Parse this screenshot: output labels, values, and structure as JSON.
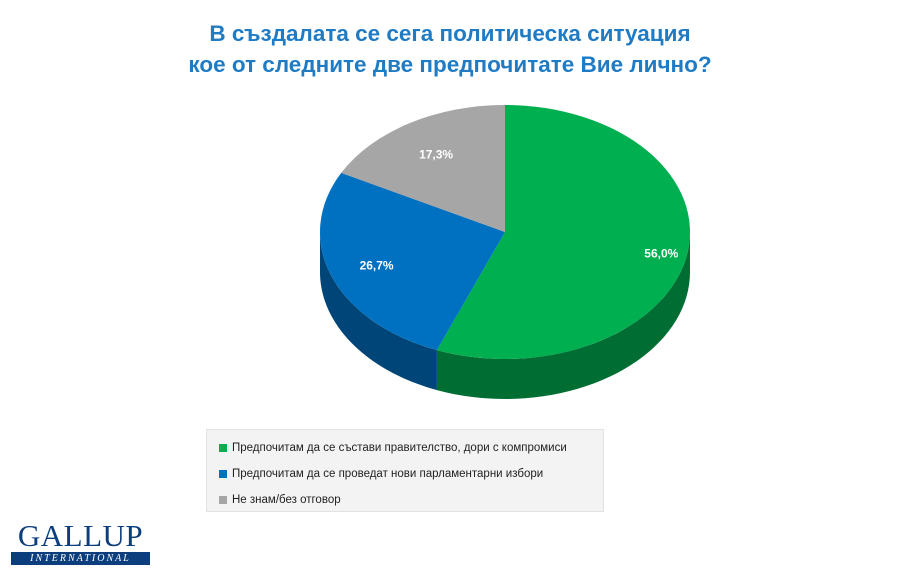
{
  "title": {
    "line1": "В създалата се сега политическа ситуация",
    "line2": "кое от следните две предпочитате Вие лично?"
  },
  "chart_data": {
    "type": "pie",
    "title": "В създалата се сега политическа ситуация кое от следните две предпочитате Вие лично?",
    "slices": [
      {
        "label": "Предпочитам да се състави правителство, дори с компромиси",
        "value": 56.0,
        "value_label": "56,0%",
        "color": "#00b050"
      },
      {
        "label": "Предпочитам да се проведат нови парламентарни избори",
        "value": 26.7,
        "value_label": "26,7%",
        "color": "#0070c0"
      },
      {
        "label": "Не знам/без отговор",
        "value": 17.3,
        "value_label": "17,3%",
        "color": "#a6a6a6"
      }
    ],
    "legend_position": "bottom"
  },
  "legend": [
    {
      "label": "Предпочитам да се състави правителство, дори с компромиси",
      "color": "#00b050"
    },
    {
      "label": "Предпочитам да се проведат нови парламентарни избори",
      "color": "#0070c0"
    },
    {
      "label": "Не знам/без отговор",
      "color": "#a6a6a6"
    }
  ],
  "logo": {
    "name": "GALLUP",
    "subtitle": "INTERNATIONAL"
  }
}
